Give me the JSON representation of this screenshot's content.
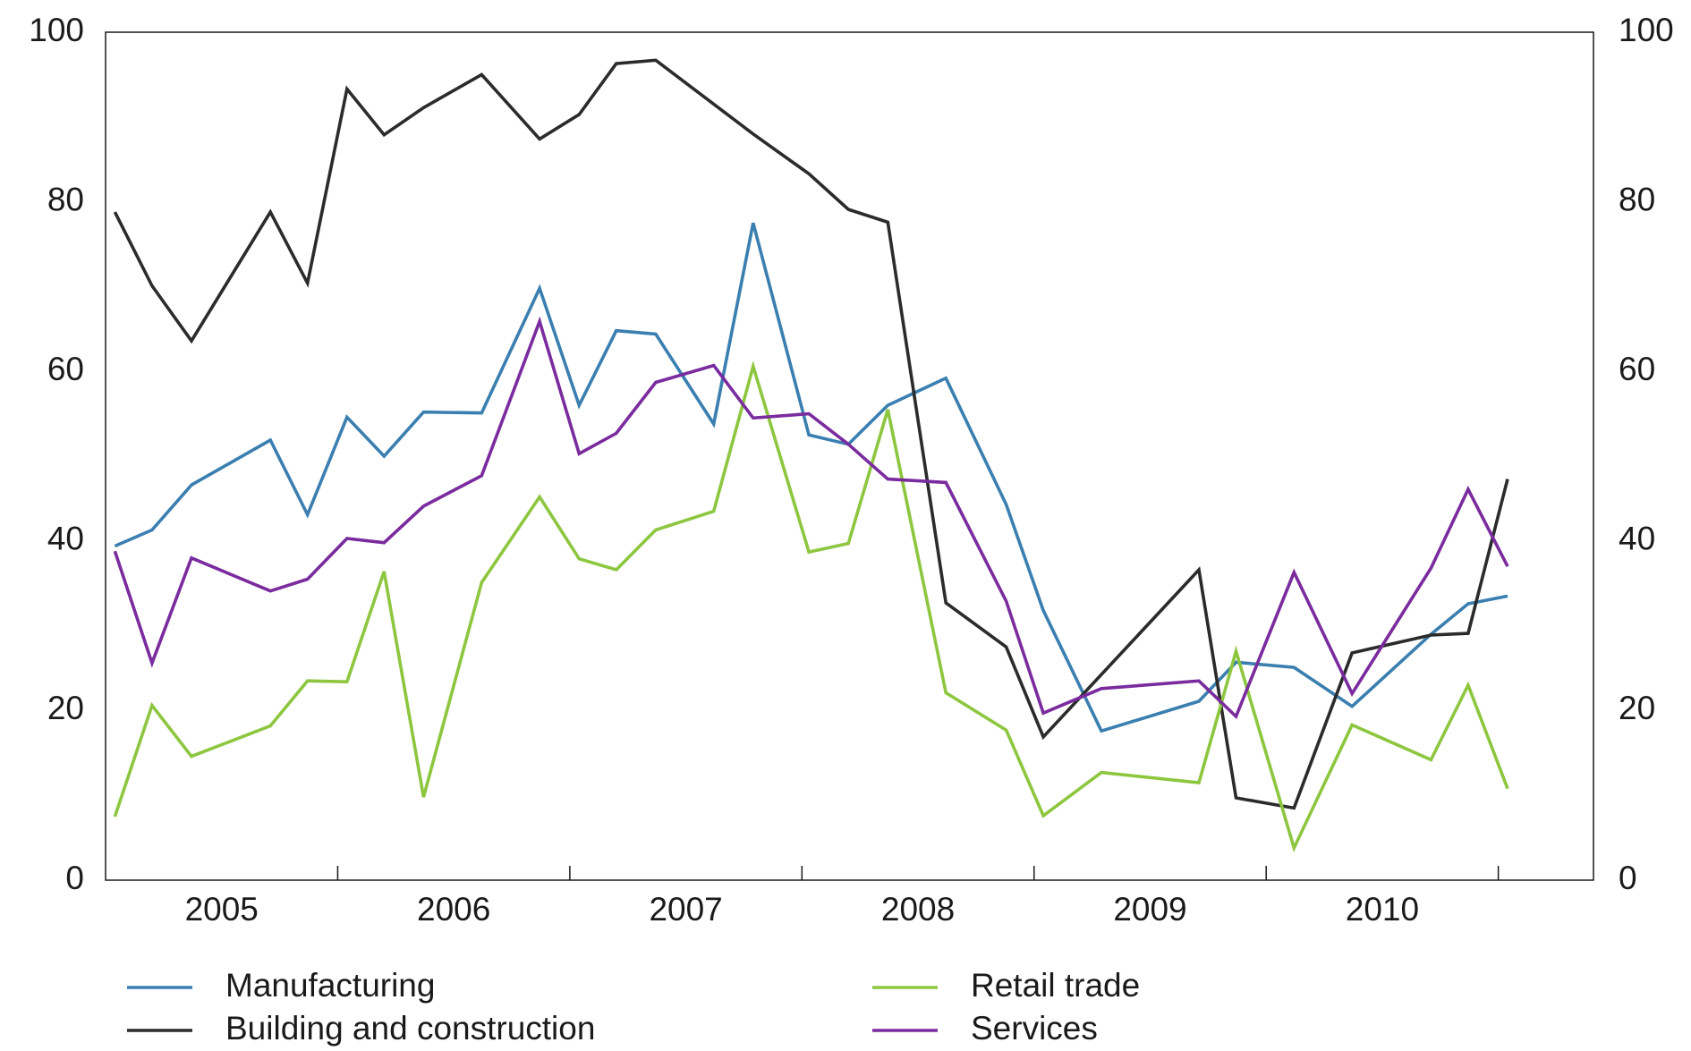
{
  "chart_data": {
    "type": "line",
    "x": [
      2005.04,
      2005.2,
      2005.37,
      2005.71,
      2005.87,
      2006.04,
      2006.2,
      2006.37,
      2006.62,
      2006.87,
      2007.04,
      2007.2,
      2007.37,
      2007.62,
      2007.79,
      2008.03,
      2008.2,
      2008.37,
      2008.62,
      2008.88,
      2009.04,
      2009.29,
      2009.71,
      2009.87,
      2010.12,
      2010.37,
      2010.71,
      2010.87,
      2011.04
    ],
    "series": [
      {
        "name": "Manufacturing",
        "color": "#3a7fb0",
        "values": [
          39.4,
          41.3,
          46.6,
          51.9,
          43.1,
          54.6,
          50.0,
          55.2,
          55.1,
          69.8,
          56.0,
          64.8,
          64.4,
          53.8,
          77.5,
          52.5,
          51.4,
          56.0,
          59.2,
          44.3,
          31.8,
          17.6,
          21.1,
          25.7,
          25.1,
          20.5,
          29.0,
          32.6,
          33.5
        ]
      },
      {
        "name": "Building and construction",
        "color": "#2b2b2b",
        "x": [
          2005.04,
          2005.2,
          2005.37,
          2005.71,
          2005.87,
          2006.04,
          2006.2,
          2006.37,
          2006.62,
          2006.87,
          2007.04,
          2007.2,
          2007.37,
          2007.79,
          2008.03,
          2008.2,
          2008.37,
          2008.62,
          2008.88,
          2009.04,
          2009.71,
          2009.87,
          2010.12,
          2010.37,
          2010.71,
          2010.87,
          2011.04
        ],
        "values": [
          78.8,
          70.1,
          63.6,
          78.8,
          70.4,
          93.3,
          87.9,
          91.1,
          95.0,
          87.4,
          90.3,
          96.3,
          96.7,
          88.0,
          83.3,
          79.1,
          77.6,
          32.7,
          27.5,
          16.9,
          36.6,
          9.7,
          8.5,
          26.8,
          28.9,
          29.1,
          47.3
        ]
      },
      {
        "name": "Retail trade",
        "color": "#8dc63f",
        "values": [
          7.5,
          20.6,
          14.6,
          18.2,
          23.5,
          23.4,
          36.4,
          9.8,
          35.1,
          45.2,
          37.9,
          36.6,
          41.3,
          43.5,
          60.6,
          38.7,
          39.7,
          55.5,
          22.1,
          17.7,
          7.6,
          12.7,
          11.5,
          27.0,
          3.8,
          18.3,
          14.2,
          23.0,
          10.8
        ]
      },
      {
        "name": "Services",
        "color": "#7a2c9e",
        "values": [
          38.8,
          25.6,
          38.0,
          34.1,
          35.5,
          40.3,
          39.8,
          44.1,
          47.7,
          65.9,
          50.3,
          52.7,
          58.7,
          60.7,
          54.5,
          55.0,
          51.4,
          47.3,
          46.9,
          32.9,
          19.7,
          22.6,
          23.5,
          19.3,
          36.3,
          22.0,
          36.8,
          46.1,
          37.0
        ]
      }
    ],
    "xlim": [
      2005,
      2011.41
    ],
    "xticks": [
      {
        "value": 2005.5,
        "label": "2005"
      },
      {
        "value": 2006.5,
        "label": "2006"
      },
      {
        "value": 2007.5,
        "label": "2007"
      },
      {
        "value": 2008.5,
        "label": "2008"
      },
      {
        "value": 2009.5,
        "label": "2009"
      },
      {
        "value": 2010.5,
        "label": "2010"
      }
    ],
    "xtick_marks": [
      2006,
      2007,
      2008,
      2009,
      2010,
      2011
    ],
    "ylim": [
      0,
      100
    ],
    "yticks": [
      0,
      20,
      40,
      60,
      80,
      100
    ],
    "y2lim": [
      0,
      100
    ],
    "y2ticks": [
      0,
      20,
      40,
      60,
      80,
      100
    ],
    "grid": false
  }
}
